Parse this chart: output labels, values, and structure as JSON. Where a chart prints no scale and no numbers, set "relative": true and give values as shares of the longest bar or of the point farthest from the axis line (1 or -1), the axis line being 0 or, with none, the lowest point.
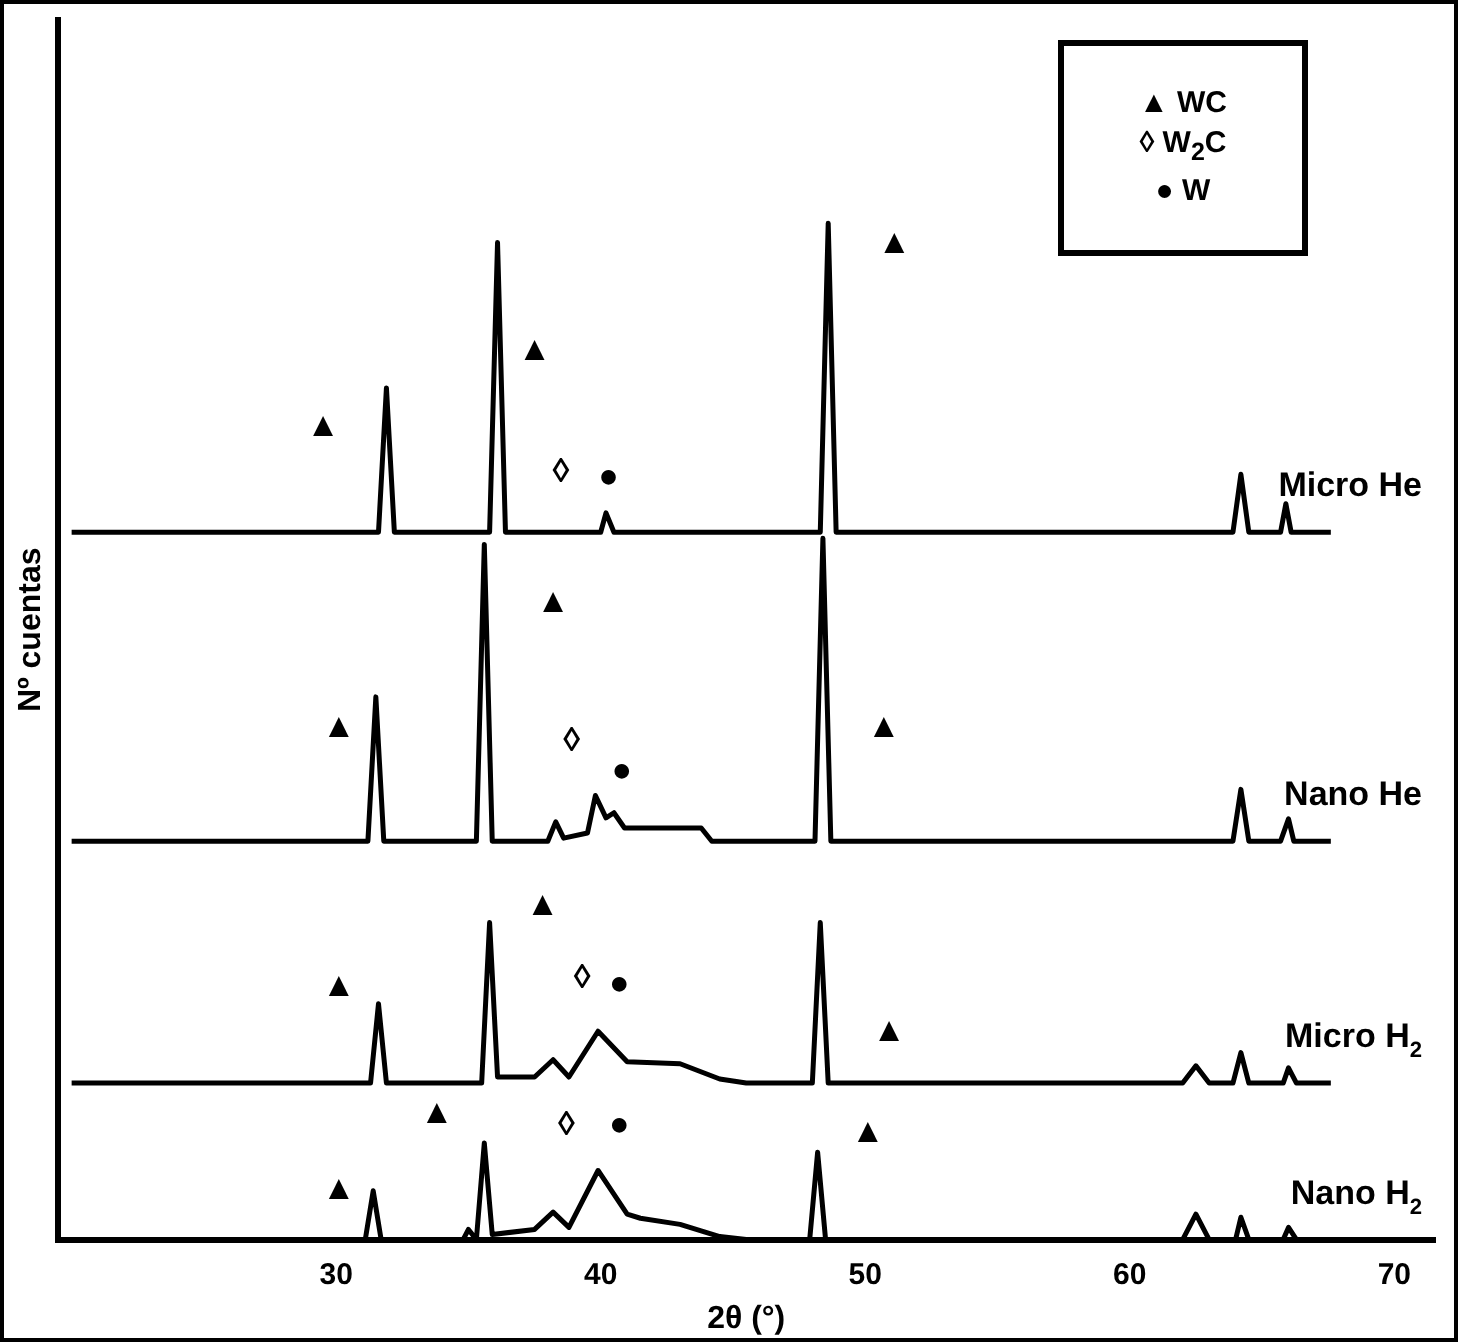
{
  "chart_data": {
    "type": "line",
    "relative": true,
    "xlabel": "2θ (°)",
    "ylabel": "Nº cuentas",
    "xlim": [
      19.5,
      71.5
    ],
    "xticks": [
      30,
      40,
      50,
      60,
      70
    ],
    "tick_labels": "x",
    "grid": false,
    "legend": false,
    "marker": "none",
    "line_style": "solid",
    "series": [
      {
        "name": "Micro He",
        "color": "#000000",
        "x": [
          20,
          31.6,
          31.9,
          32.2,
          35.8,
          36.1,
          36.4,
          40,
          40.2,
          40.5,
          48.3,
          48.6,
          48.9,
          63.9,
          64.2,
          64.5,
          65.7,
          65.9,
          66.1,
          67.6
        ],
        "values": [
          0.696,
          0.696,
          0.838,
          0.696,
          0.696,
          0.981,
          0.696,
          0.696,
          0.715,
          0.696,
          0.696,
          1.0,
          0.696,
          0.696,
          0.753,
          0.696,
          0.696,
          0.724,
          0.696,
          0.696
        ]
      },
      {
        "name": "Nano He",
        "color": "#000000",
        "x": [
          20,
          31.2,
          31.5,
          31.8,
          35.3,
          35.6,
          35.9,
          38,
          38.3,
          38.6,
          39.5,
          39.8,
          40.2,
          40.5,
          40.9,
          43.8,
          44.2,
          48.1,
          48.4,
          48.7,
          63.9,
          64.2,
          64.5,
          65.7,
          66,
          66.2,
          67.6
        ],
        "values": [
          0.392,
          0.392,
          0.534,
          0.392,
          0.392,
          0.684,
          0.392,
          0.392,
          0.411,
          0.395,
          0.4,
          0.437,
          0.415,
          0.42,
          0.405,
          0.405,
          0.392,
          0.392,
          0.69,
          0.392,
          0.392,
          0.443,
          0.392,
          0.392,
          0.414,
          0.392,
          0.392
        ]
      },
      {
        "name": "Micro H$_{2}$",
        "color": "#000000",
        "x": [
          20,
          31.3,
          31.6,
          31.9,
          35.5,
          35.8,
          36.1,
          37.5,
          38.2,
          38.8,
          39.9,
          41,
          43,
          44.5,
          45.5,
          48,
          48.3,
          48.6,
          62,
          62.5,
          63,
          63.9,
          64.2,
          64.5,
          65.8,
          66,
          66.3,
          67.6
        ],
        "values": [
          0.154,
          0.154,
          0.232,
          0.154,
          0.154,
          0.312,
          0.16,
          0.16,
          0.177,
          0.16,
          0.205,
          0.175,
          0.173,
          0.158,
          0.154,
          0.154,
          0.312,
          0.154,
          0.154,
          0.171,
          0.154,
          0.154,
          0.184,
          0.154,
          0.154,
          0.169,
          0.154,
          0.154
        ]
      },
      {
        "name": "Nano H$_{2}$",
        "color": "#000000",
        "x": [
          20,
          31.1,
          31.4,
          31.7,
          34.8,
          35,
          35.3,
          35.6,
          35.9,
          37.5,
          38.2,
          38.8,
          39.9,
          41,
          41.5,
          43,
          44.5,
          45.5,
          47.9,
          48.2,
          48.5,
          62,
          62.5,
          63,
          64,
          64.2,
          64.5,
          65.8,
          66,
          66.3,
          67.3
        ],
        "values": [
          0,
          0,
          0.048,
          0,
          0,
          0.01,
          0,
          0.095,
          0.005,
          0.01,
          0.027,
          0.012,
          0.068,
          0.025,
          0.021,
          0.015,
          0.003,
          0,
          0,
          0.086,
          0,
          0,
          0.025,
          0,
          0,
          0.022,
          0,
          0,
          0.012,
          0,
          0
        ]
      }
    ],
    "annotations": [
      "▲ WC",
      "◊ W$_{2}$C",
      "● W",
      "▲",
      "▲",
      "◊",
      "●",
      "▲",
      "▲",
      "▲",
      "◊",
      "●",
      "▲",
      "▲",
      "▲",
      "◊",
      "●",
      "▲",
      "▲",
      "▲",
      "◊",
      "●",
      "▲"
    ]
  }
}
